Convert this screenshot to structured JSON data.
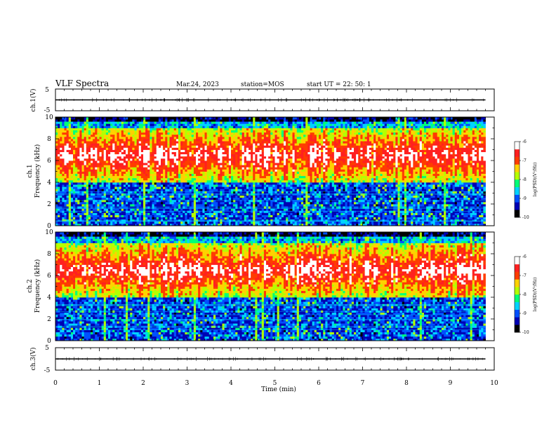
{
  "header": {
    "title": "VLF Spectra",
    "date": "Mar.24, 2023",
    "station": "station=MOS",
    "start": "start  UT =   22: 50: 1"
  },
  "colors": {
    "colormap": [
      "#000000",
      "#0000b4",
      "#0050ff",
      "#00d2ff",
      "#00ff78",
      "#b4ff00",
      "#ffd200",
      "#ff3c00",
      "#ff2020",
      "#ffffff"
    ]
  },
  "chart_data": [
    {
      "type": "line",
      "id": "ch1-waveform",
      "ylabel": "ch.1(V)",
      "ylim": [
        -5,
        5
      ],
      "yticks": [
        "5",
        "-5"
      ],
      "x": [
        0,
        9.8
      ],
      "values": [
        0,
        0
      ]
    },
    {
      "type": "heatmap",
      "id": "ch1-spectrogram",
      "ylabel_top": "ch.1",
      "ylabel": "Frequency (kHz)",
      "ylim": [
        0,
        10
      ],
      "yticks": [
        "0",
        "2",
        "4",
        "6",
        "8",
        "10"
      ],
      "xlim": [
        0,
        10
      ],
      "data_end_min": 9.8,
      "strong_band_khz": [
        4.0,
        9.0
      ],
      "colorbar": {
        "label": "log(PSD)(V²/Hz)",
        "ticks": [
          "-6",
          "-7",
          "-8",
          "-9",
          "-10"
        ],
        "range": [
          -10,
          -6
        ]
      }
    },
    {
      "type": "heatmap",
      "id": "ch2-spectrogram",
      "ylabel_top": "ch.2",
      "ylabel": "Frequency (kHz)",
      "ylim": [
        0,
        10
      ],
      "yticks": [
        "0",
        "2",
        "4",
        "6",
        "8",
        "10"
      ],
      "xlim": [
        0,
        10
      ],
      "data_end_min": 9.8,
      "strong_band_khz": [
        4.0,
        9.0
      ],
      "colorbar": {
        "label": "log(PSD)(V²/Hz)",
        "ticks": [
          "-6",
          "-7",
          "-8",
          "-9",
          "-10"
        ],
        "range": [
          -10,
          -6
        ]
      }
    },
    {
      "type": "line",
      "id": "ch3-waveform",
      "ylabel": "ch.3(V)",
      "ylim": [
        -5,
        5
      ],
      "yticks": [
        "5",
        "-5"
      ],
      "x": [
        0,
        9.8
      ],
      "values": [
        0,
        0
      ]
    }
  ],
  "xaxis": {
    "label": "Time (min)",
    "ticks": [
      "0",
      "1",
      "2",
      "3",
      "4",
      "5",
      "6",
      "7",
      "8",
      "9",
      "10"
    ],
    "xlim": [
      0,
      10
    ]
  }
}
